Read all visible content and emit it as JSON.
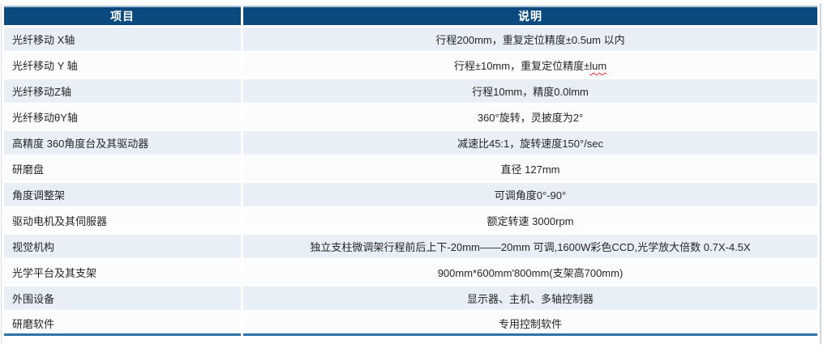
{
  "table": {
    "columns": [
      {
        "label": "项目"
      },
      {
        "label": "说明"
      }
    ],
    "rows": [
      {
        "item": "光纤移动 X轴",
        "desc": "行程200mm，重复定位精度±0.5um 以内"
      },
      {
        "item": "光纤移动 Y 轴",
        "desc": "行程±10mm，重复定位精度±",
        "desc_wavy": "lum"
      },
      {
        "item": "光纤移动Z轴",
        "desc": "行程10mm，精度0.0lmm"
      },
      {
        "item": "光纤移动θY轴",
        "desc": "360°旋转，灵披度为2°"
      },
      {
        "item": "高精度 360角度台及其驱动器",
        "desc": "减速比45:1，旋转速度150°/sec"
      },
      {
        "item": "研磨盘",
        "desc": "直径 127mm"
      },
      {
        "item": "角度调整架",
        "desc": "可调角度0°-90°"
      },
      {
        "item": "驱动电机及其伺服器",
        "desc": "额定转速 3000rpm"
      },
      {
        "item": "视觉机构",
        "desc": "独立支柱微调架行程前后上下-20mm——20mm 可调,1600W彩色CCD,光学放大倍数 0.7X-4.5X"
      },
      {
        "item": "光学平台及其支架",
        "desc": "900mm*600mm'800mm(支架高700mm)"
      },
      {
        "item": "外围设备",
        "desc": "显示器、主机、多轴控制器"
      },
      {
        "item": "研磨软件",
        "desc": "专用控制软件"
      }
    ]
  },
  "colors": {
    "header_bg": "#0B4A7E",
    "header_text": "#FFFFFF",
    "row_alt": "#E8EFF7",
    "row_base": "#FAFCFD",
    "text": "#262626",
    "bottom_border": "#2E74A8",
    "frame_border": "#C9D8E6",
    "wavy": "#E03131"
  }
}
